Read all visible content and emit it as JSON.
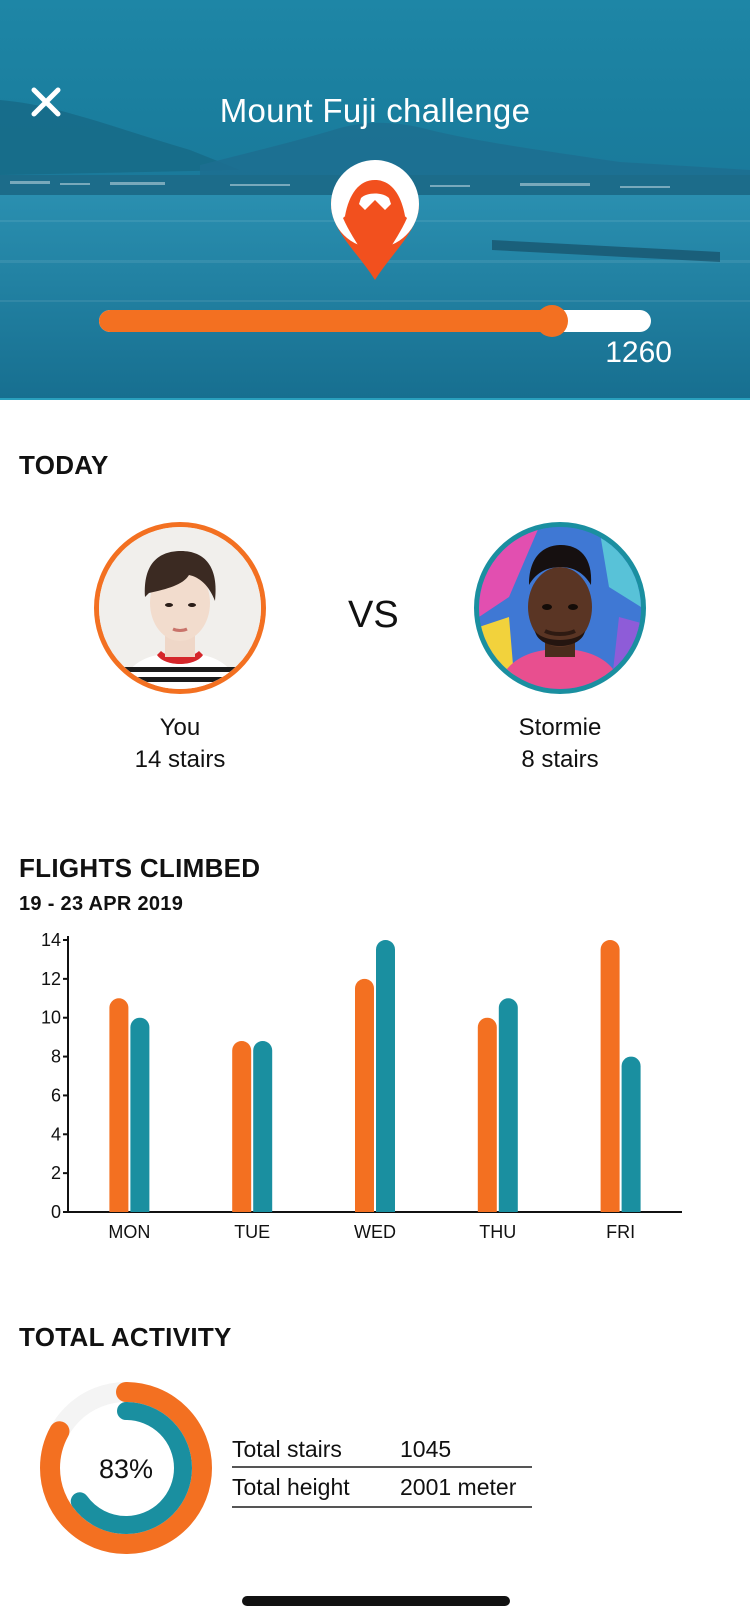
{
  "header": {
    "title": "Mount Fuji challenge",
    "close_icon": "close-icon",
    "pin_icon": "mountain-pin-icon",
    "progress_fraction": 0.82,
    "progress_value": "1260"
  },
  "today": {
    "title": "TODAY",
    "vs_label": "VS",
    "players": [
      {
        "name": "You",
        "stairs": "14 stairs",
        "ring_color": "#f37021"
      },
      {
        "name": "Stormie",
        "stairs": "8 stairs",
        "ring_color": "#1a8fa0"
      }
    ]
  },
  "flights": {
    "title": "FLIGHTS CLIMBED",
    "date_range": "19 - 23 APR 2019"
  },
  "chart_data": {
    "type": "bar",
    "categories": [
      "MON",
      "TUE",
      "WED",
      "THU",
      "FRI"
    ],
    "series": [
      {
        "values": [
          11,
          8.8,
          12,
          10,
          14
        ],
        "color": "#f37021"
      },
      {
        "values": [
          10,
          8.8,
          14,
          11,
          8
        ],
        "color": "#1a8fa0"
      }
    ],
    "yticks": [
      0,
      2,
      4,
      6,
      8,
      10,
      12,
      14
    ],
    "ylim": [
      0,
      14
    ],
    "grid": false,
    "legend": "none"
  },
  "total_activity": {
    "title": "TOTAL ACTIVITY",
    "percent_label": "83%",
    "outer_fraction": 0.83,
    "inner_fraction": 0.65,
    "outer_color": "#f37021",
    "inner_color": "#1a8fa0",
    "track_color": "#f4f4f4",
    "stats": [
      {
        "label": "Total stairs",
        "value": "1045"
      },
      {
        "label": "Total height",
        "value": "2001 meter"
      }
    ]
  }
}
